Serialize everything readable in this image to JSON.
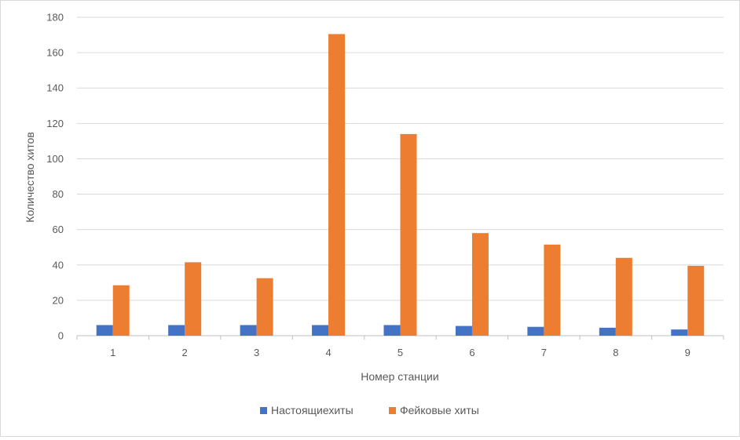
{
  "chart_data": {
    "type": "bar",
    "title": "",
    "xlabel": "Номер станции",
    "ylabel": "Количество хитов",
    "categories": [
      "1",
      "2",
      "3",
      "4",
      "5",
      "6",
      "7",
      "8",
      "9"
    ],
    "ylim": [
      0,
      180
    ],
    "yticks": [
      "0",
      "20",
      "40",
      "60",
      "80",
      "100",
      "120",
      "140",
      "160",
      "180"
    ],
    "grid": true,
    "legend_position": "bottom",
    "series": [
      {
        "name": "Настоящиехиты",
        "color": "#4472c4",
        "values": [
          6,
          6,
          6,
          6,
          6,
          5.5,
          5,
          4.5,
          3.5
        ]
      },
      {
        "name": "Фейковые хиты",
        "color": "#ed7d31",
        "values": [
          28.5,
          41.5,
          32.5,
          170.5,
          114,
          58,
          51.5,
          44,
          39.5
        ]
      }
    ]
  }
}
